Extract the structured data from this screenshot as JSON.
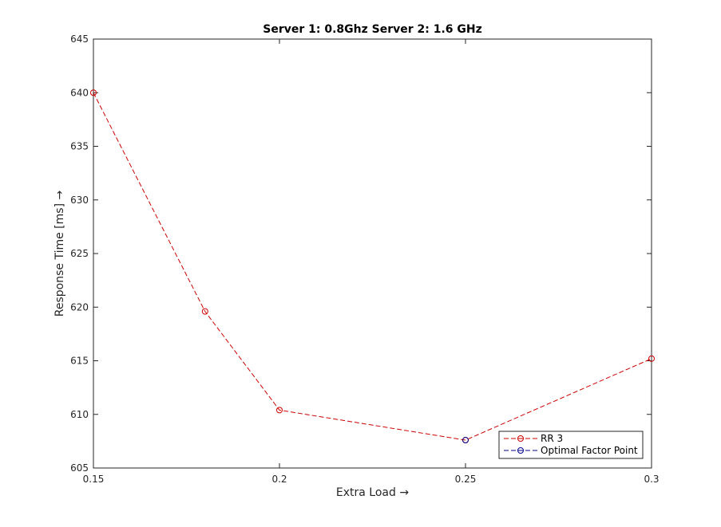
{
  "chart_data": {
    "type": "line",
    "title": "Server 1: 0.8Ghz Server 2: 1.6 GHz",
    "xlabel": "Extra Load →",
    "ylabel": "Response Time [ms] →",
    "xlim": [
      0.15,
      0.3
    ],
    "ylim": [
      605,
      645
    ],
    "xticks": [
      0.15,
      0.2,
      0.25,
      0.3
    ],
    "xtick_labels": [
      "0.15",
      "0.2",
      "0.25",
      "0.3"
    ],
    "yticks": [
      605,
      610,
      615,
      620,
      625,
      630,
      635,
      640,
      645
    ],
    "ytick_labels": [
      "605",
      "610",
      "615",
      "620",
      "625",
      "630",
      "635",
      "640",
      "645"
    ],
    "grid": false,
    "legend_position": "bottom-right",
    "series": [
      {
        "name": "RR 3",
        "color": "#cc0000",
        "line_style": "dashed",
        "marker": "circle",
        "x": [
          0.15,
          0.18,
          0.2,
          0.25,
          0.3
        ],
        "y": [
          640.0,
          619.6,
          610.4,
          607.6,
          615.2
        ]
      },
      {
        "name": "Optimal Factor Point",
        "color": "#00008b",
        "line_style": "dashed",
        "marker": "circle",
        "x": [
          0.25
        ],
        "y": [
          607.6
        ]
      }
    ]
  }
}
